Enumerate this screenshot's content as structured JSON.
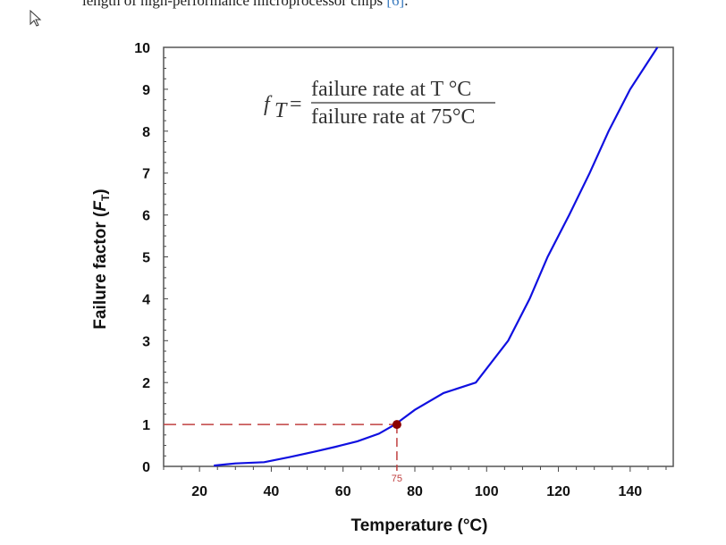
{
  "document": {
    "top_text": "length of high-performance microprocessor chips",
    "citation": "[6]",
    "top_text_end": "."
  },
  "chart_data": {
    "type": "line",
    "xlabel": "Temperature (°C)",
    "ylabel_main": "Failure factor (",
    "ylabel_symbol": "F",
    "ylabel_sub": "T",
    "ylabel_end": ")",
    "xlim": [
      10,
      152
    ],
    "ylim": [
      0,
      10
    ],
    "xticks": [
      20,
      40,
      60,
      80,
      100,
      120,
      140
    ],
    "yticks": [
      0,
      1,
      2,
      3,
      4,
      5,
      6,
      7,
      8,
      9,
      10
    ],
    "series": [
      {
        "name": "Failure factor",
        "color": "#1010e0",
        "x": [
          24,
          30,
          38,
          45,
          52,
          58,
          64,
          70,
          74.5,
          80,
          88,
          97,
          106,
          112,
          117,
          123,
          128.7,
          134,
          140,
          147.6
        ],
        "y": [
          0.02,
          0.07,
          0.1,
          0.22,
          0.35,
          0.47,
          0.6,
          0.78,
          1.0,
          1.35,
          1.75,
          2.0,
          3.0,
          4.0,
          5.0,
          6.0,
          7.0,
          8.0,
          9.0,
          10.0
        ]
      }
    ],
    "reference_point": {
      "x": 75,
      "y": 1,
      "label": "75",
      "color": "#8b0000",
      "line_color": "#c04040"
    },
    "formula": {
      "lhs": "f",
      "lhs_sub": "T",
      "numerator": "failure rate at T °C",
      "denominator": "failure rate at 75°C"
    }
  }
}
